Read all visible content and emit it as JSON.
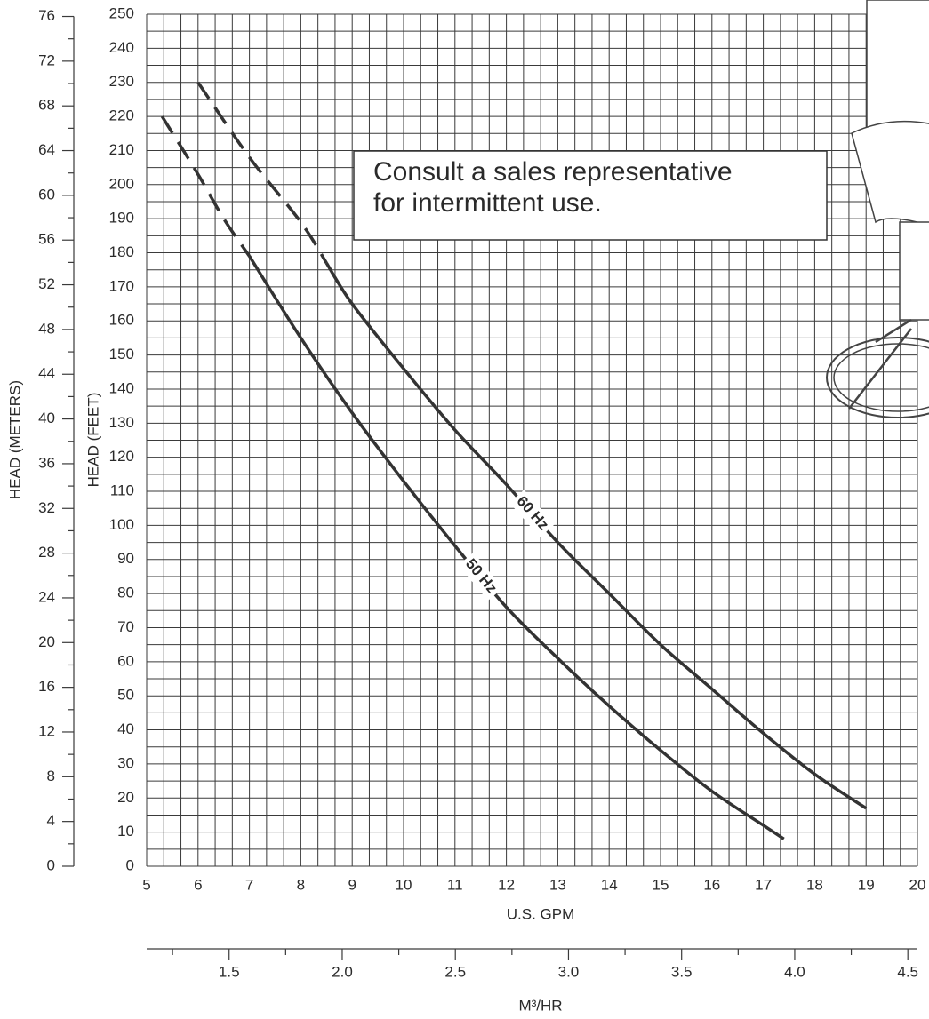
{
  "chart_data": {
    "type": "line",
    "xlabel": "U.S. GPM",
    "ylabel": "HEAD (FEET)",
    "y2label": "HEAD (METERS)",
    "x2label": "M³/HR",
    "xlim": [
      5,
      20
    ],
    "xticks": [
      5,
      6,
      7,
      8,
      9,
      10,
      11,
      12,
      13,
      14,
      15,
      16,
      17,
      18,
      19,
      20
    ],
    "ylim": [
      0,
      250
    ],
    "yticks": [
      0,
      10,
      20,
      30,
      40,
      50,
      60,
      70,
      80,
      90,
      100,
      110,
      120,
      130,
      140,
      150,
      160,
      170,
      180,
      190,
      200,
      210,
      220,
      230,
      240,
      250
    ],
    "y2lim": [
      0,
      76.2
    ],
    "y2ticks": [
      0,
      4,
      8,
      12,
      16,
      20,
      24,
      28,
      32,
      36,
      40,
      44,
      48,
      52,
      56,
      60,
      64,
      68,
      72,
      76
    ],
    "x2lim": [
      1.1356,
      4.5425
    ],
    "x2ticks": [
      {
        "value": 1.5,
        "label": "1.5"
      },
      {
        "value": 2,
        "label": "2.0"
      },
      {
        "value": 2.5,
        "label": "2.5"
      },
      {
        "value": 3,
        "label": "3.0"
      },
      {
        "value": 3.5,
        "label": "3.5"
      },
      {
        "value": 4,
        "label": "4.0"
      },
      {
        "value": 4.5,
        "label": "4.5"
      }
    ],
    "grid": true,
    "annotation": [
      "Consult a sales representative",
      "for intermittent use."
    ],
    "series": [
      {
        "name": "60 Hz",
        "color": "#333333",
        "x": [
          8.5,
          9,
          10,
          11,
          12,
          13,
          14,
          15,
          16,
          17,
          18,
          19
        ],
        "values": [
          177,
          165,
          146,
          128,
          112,
          95,
          80,
          65,
          52,
          39,
          27,
          17
        ]
      },
      {
        "color": "#333333",
        "dashed": true,
        "x": [
          6,
          7,
          8,
          8.5
        ],
        "values": [
          230,
          208,
          189,
          177
        ]
      },
      {
        "name": "50 Hz",
        "color": "#333333",
        "x": [
          7,
          8,
          9,
          10,
          11,
          12,
          13,
          14,
          15,
          16,
          17,
          17.4
        ],
        "values": [
          179,
          155,
          133,
          113,
          94,
          76,
          61,
          47,
          34,
          22,
          12,
          8
        ]
      },
      {
        "color": "#333333",
        "dashed": true,
        "x": [
          5.3,
          6,
          6.5,
          7
        ],
        "values": [
          220,
          203,
          190,
          179
        ]
      }
    ]
  }
}
